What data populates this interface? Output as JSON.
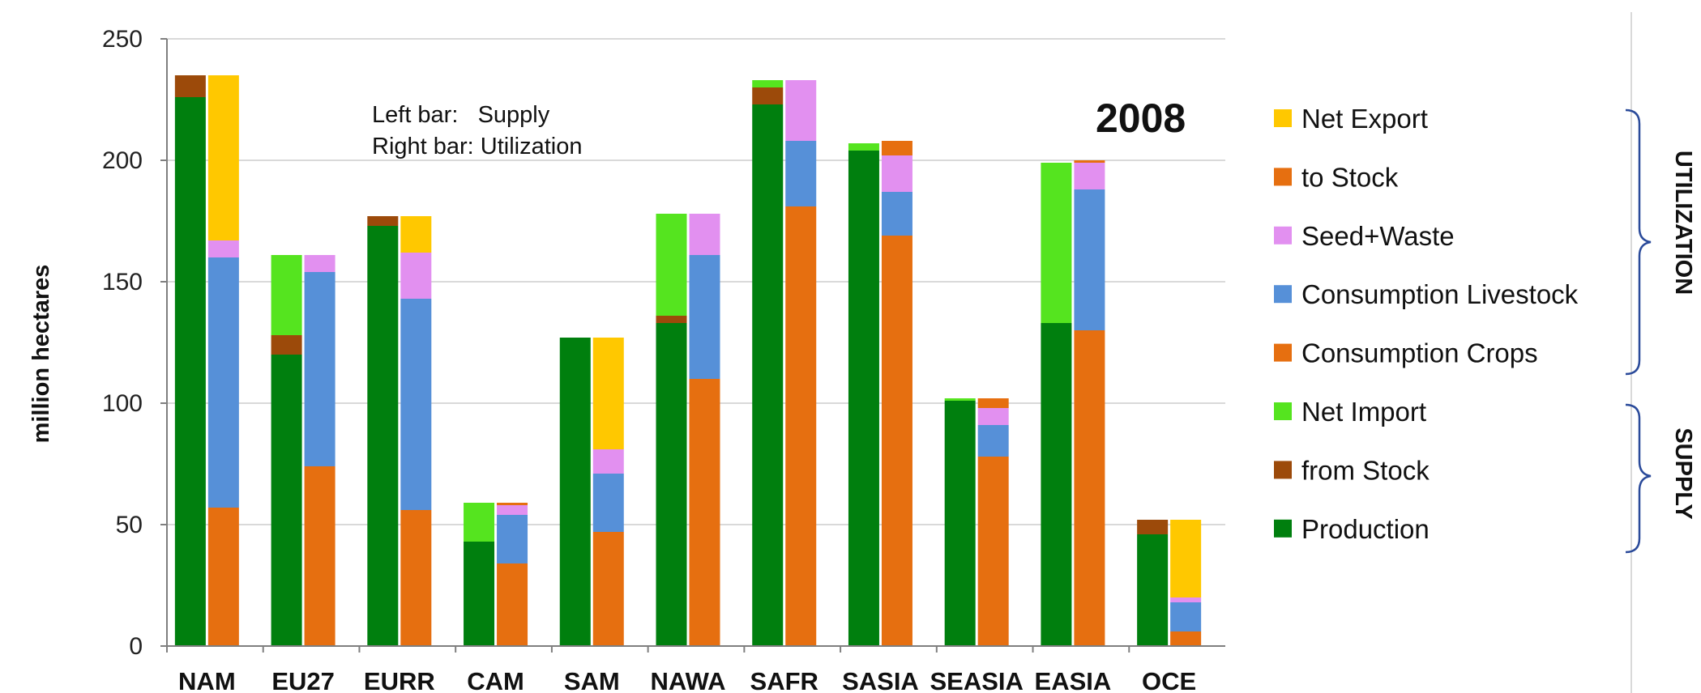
{
  "chart_data": {
    "type": "bar",
    "stacked": true,
    "grouped": true,
    "year_label": "2008",
    "note_lines": [
      "Left bar:   Supply",
      "Right bar: Utilization"
    ],
    "ylabel": "million hectares",
    "ylim": [
      0,
      250
    ],
    "yticks": [
      0,
      50,
      100,
      150,
      200,
      250
    ],
    "grid": true,
    "categories": [
      "NAM",
      "EU27",
      "EURR",
      "CAM",
      "SAM",
      "NAWA",
      "SAFR",
      "SASIA",
      "SEASIA",
      "EASIA",
      "OCE"
    ],
    "supply_series": [
      {
        "name": "Production",
        "color": "#007F0E",
        "values": [
          226,
          120,
          173,
          43,
          127,
          133,
          223,
          204,
          101,
          133,
          46
        ]
      },
      {
        "name": "from Stock",
        "color": "#9C4A0A",
        "values": [
          9,
          8,
          4,
          0,
          0,
          3,
          7,
          0,
          0,
          0,
          6
        ]
      },
      {
        "name": "Net Import",
        "color": "#55E41F",
        "values": [
          0,
          33,
          0,
          16,
          0,
          42,
          3,
          3,
          1,
          66,
          0
        ]
      }
    ],
    "utilization_series": [
      {
        "name": "Consumption Crops",
        "color": "#E66F10",
        "values": [
          57,
          74,
          56,
          34,
          47,
          110,
          181,
          169,
          78,
          130,
          6
        ]
      },
      {
        "name": "Consumption Livestock",
        "color": "#5690D8",
        "values": [
          103,
          80,
          87,
          20,
          24,
          51,
          27,
          18,
          13,
          58,
          12
        ]
      },
      {
        "name": "Seed+Waste",
        "color": "#E290F0",
        "values": [
          7,
          7,
          19,
          4,
          10,
          17,
          25,
          15,
          7,
          11,
          2
        ]
      },
      {
        "name": "to Stock",
        "color": "#E66F10",
        "values": [
          0,
          0,
          0,
          1,
          0,
          0,
          0,
          6,
          4,
          1,
          0
        ]
      },
      {
        "name": "Net Export",
        "color": "#FFC800",
        "values": [
          68,
          0,
          15,
          0,
          46,
          0,
          0,
          0,
          0,
          0,
          32
        ]
      }
    ],
    "legend": [
      {
        "name": "Net Export",
        "color": "#FFC800"
      },
      {
        "name": "to Stock",
        "color": "#E66F10"
      },
      {
        "name": "Seed+Waste",
        "color": "#E290F0"
      },
      {
        "name": "Consumption Livestock",
        "color": "#5690D8"
      },
      {
        "name": "Consumption Crops",
        "color": "#E66F10"
      },
      {
        "name": "Net Import",
        "color": "#55E41F"
      },
      {
        "name": "from Stock",
        "color": "#9C4A0A"
      },
      {
        "name": "Production",
        "color": "#007F0E"
      }
    ],
    "legend_placement": "right",
    "brackets": [
      {
        "label": "UTILIZATION",
        "span": "Net Export to Consumption Crops"
      },
      {
        "label": "SUPPLY",
        "span": "Net Import to Production"
      }
    ]
  }
}
